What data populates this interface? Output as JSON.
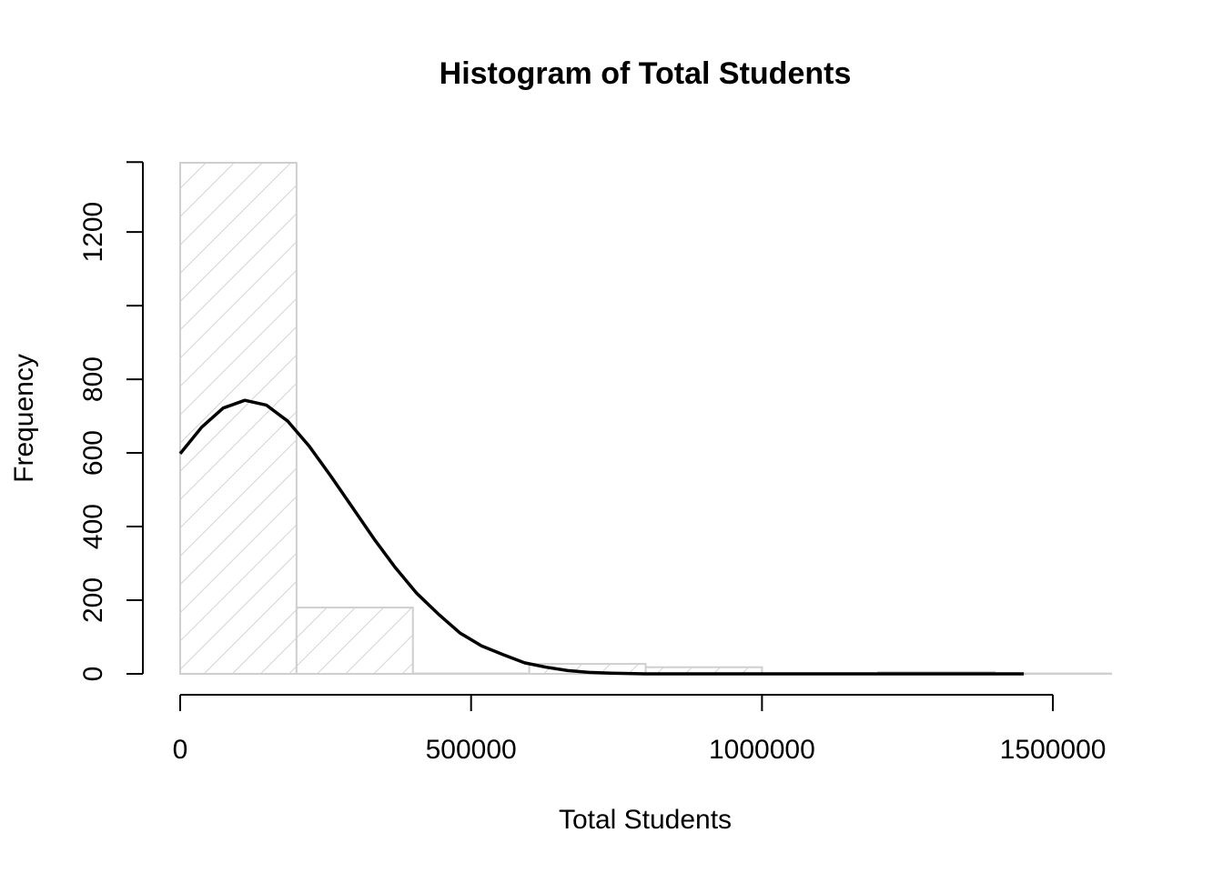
{
  "chart_data": {
    "type": "bar",
    "title": "Histogram of Total Students",
    "xlabel": "Total Students",
    "ylabel": "Frequency",
    "xlim": [
      0,
      1600000
    ],
    "ylim": [
      0,
      1390
    ],
    "x_ticks": [
      0,
      500000,
      1000000,
      1500000
    ],
    "x_tick_labels": [
      "0",
      "500000",
      "1000000",
      "1500000"
    ],
    "y_ticks": [
      0,
      200,
      400,
      600,
      800,
      1000,
      1200
    ],
    "y_tick_labels": [
      "0",
      "200",
      "400",
      "600",
      "800",
      "",
      "1200"
    ],
    "bins": [
      {
        "start": 0,
        "end": 200000,
        "count": 1388
      },
      {
        "start": 200000,
        "end": 400000,
        "count": 180
      },
      {
        "start": 400000,
        "end": 600000,
        "count": 1
      },
      {
        "start": 600000,
        "end": 800000,
        "count": 27
      },
      {
        "start": 800000,
        "end": 1000000,
        "count": 18
      },
      {
        "start": 1000000,
        "end": 1200000,
        "count": 0
      },
      {
        "start": 1200000,
        "end": 1400000,
        "count": 5
      },
      {
        "start": 1400000,
        "end": 1600000,
        "count": 1
      }
    ],
    "density_curve": {
      "x": [
        0,
        37000,
        74000,
        111000,
        148000,
        185000,
        222000,
        259000,
        296000,
        333000,
        370000,
        407000,
        444000,
        481000,
        518000,
        555000,
        592000,
        629000,
        666000,
        703000,
        740000,
        800000,
        900000,
        1000000,
        1100000,
        1200000,
        1300000,
        1400000,
        1450000
      ],
      "y": [
        598,
        670,
        722,
        743,
        730,
        686,
        618,
        537,
        452,
        367,
        288,
        218,
        162,
        111,
        76,
        52,
        30,
        18,
        9,
        4,
        2,
        0,
        0,
        0,
        0,
        0,
        0,
        0,
        0
      ]
    },
    "bar_style": "hatched",
    "bar_color": "#cfcfcf",
    "curve_color": "#000000",
    "grid": false,
    "legend": "none"
  }
}
